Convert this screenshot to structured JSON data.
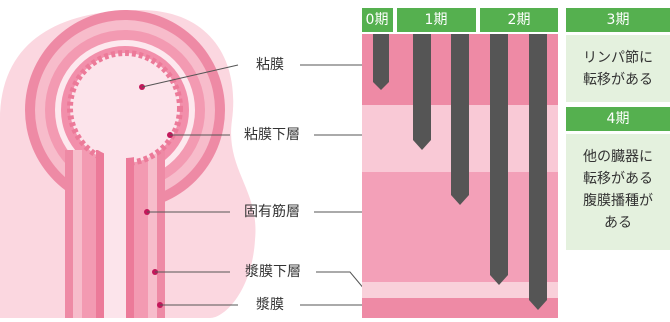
{
  "layers": [
    "粘膜",
    "粘膜下層",
    "固有筋層",
    "漿膜下層",
    "漿膜"
  ],
  "stages": [
    "0期",
    "1期",
    "2期"
  ],
  "stage3": {
    "title": "3期",
    "text": [
      "リンパ節に",
      "転移がある"
    ]
  },
  "stage4": {
    "title": "4期",
    "text": [
      "他の臓器に",
      "転移がある",
      "腹膜播種が",
      "ある"
    ]
  }
}
